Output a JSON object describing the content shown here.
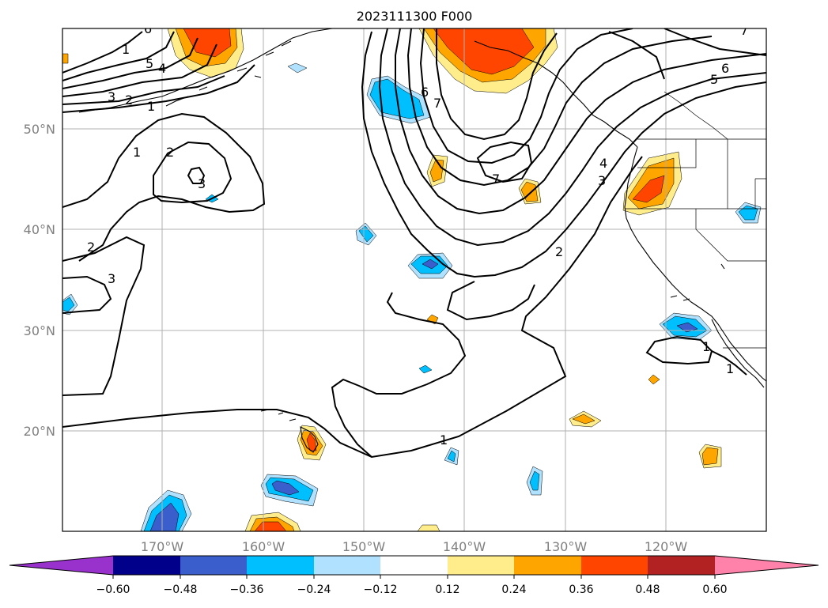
{
  "title": "2023111300 F000",
  "lat_labels": [
    "50°N",
    "40°N",
    "30°N",
    "20°N"
  ],
  "lon_labels": [
    "170°W",
    "160°W",
    "150°W",
    "140°W",
    "130°W",
    "120°W"
  ],
  "contour_labels": [
    "1",
    "2",
    "3",
    "4",
    "5",
    "6",
    "7"
  ],
  "colorbar": {
    "ticks": [
      "−0.60",
      "−0.48",
      "−0.36",
      "−0.24",
      "−0.12",
      "0.12",
      "0.24",
      "0.36",
      "0.48",
      "0.60"
    ],
    "colors": [
      "#9932cc",
      "#00008b",
      "#3a5fcd",
      "#00bfff",
      "#b0e2ff",
      "#ffffff",
      "#ffec8b",
      "#ffa500",
      "#ff4500",
      "#b22222",
      "#ff82ab"
    ]
  },
  "shading_colors": {
    "pos_1": "#ffec8b",
    "pos_2": "#ffa500",
    "pos_3": "#ff4500",
    "neg_1": "#b0e2ff",
    "neg_2": "#00bfff",
    "neg_3": "#3a5fcd"
  }
}
